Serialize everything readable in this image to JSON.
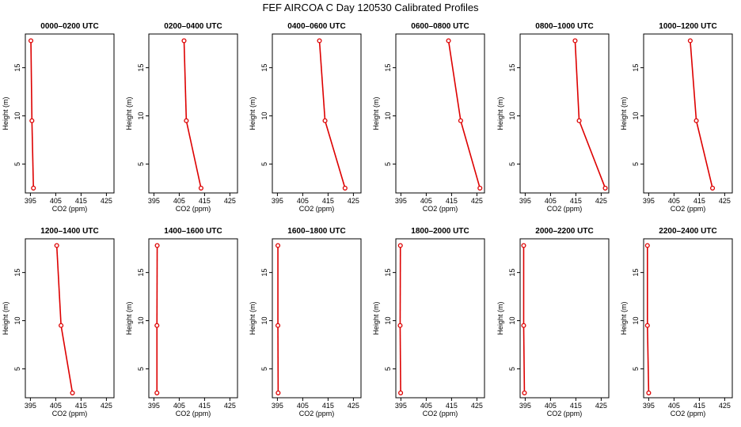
{
  "title": "FEF AIRCOA C  Day 120530  Calibrated Profiles",
  "colors": {
    "profile": "#dd0000",
    "frame": "#000000",
    "background": "#ffffff"
  },
  "chart_data": [
    {
      "type": "line",
      "title": "0000–0200 UTC",
      "xlabel": "CO2 (ppm)",
      "ylabel": "Height (m)",
      "xlim": [
        393,
        428
      ],
      "ylim": [
        2,
        18.5
      ],
      "xticks": [
        395,
        405,
        415,
        425
      ],
      "yticks": [
        5,
        10,
        15
      ],
      "grid": false,
      "points": [
        {
          "co2": 396.2,
          "height": 2.5
        },
        {
          "co2": 395.6,
          "height": 9.5
        },
        {
          "co2": 395.2,
          "height": 17.8
        }
      ]
    },
    {
      "type": "line",
      "title": "0200–0400 UTC",
      "xlabel": "CO2 (ppm)",
      "ylabel": "Height (m)",
      "xlim": [
        393,
        428
      ],
      "ylim": [
        2,
        18.5
      ],
      "xticks": [
        395,
        405,
        415,
        425
      ],
      "yticks": [
        5,
        10,
        15
      ],
      "grid": false,
      "points": [
        {
          "co2": 413.6,
          "height": 2.5
        },
        {
          "co2": 407.8,
          "height": 9.5
        },
        {
          "co2": 406.9,
          "height": 17.8
        }
      ]
    },
    {
      "type": "line",
      "title": "0400–0600 UTC",
      "xlabel": "CO2 (ppm)",
      "ylabel": "Height (m)",
      "xlim": [
        393,
        428
      ],
      "ylim": [
        2,
        18.5
      ],
      "xticks": [
        395,
        405,
        415,
        425
      ],
      "yticks": [
        5,
        10,
        15
      ],
      "grid": false,
      "points": [
        {
          "co2": 421.7,
          "height": 2.5
        },
        {
          "co2": 413.8,
          "height": 9.5
        },
        {
          "co2": 411.6,
          "height": 17.8
        }
      ]
    },
    {
      "type": "line",
      "title": "0600–0800 UTC",
      "xlabel": "CO2 (ppm)",
      "ylabel": "Height (m)",
      "xlim": [
        393,
        428
      ],
      "ylim": [
        2,
        18.5
      ],
      "xticks": [
        395,
        405,
        415,
        425
      ],
      "yticks": [
        5,
        10,
        15
      ],
      "grid": false,
      "points": [
        {
          "co2": 426.2,
          "height": 2.5
        },
        {
          "co2": 418.6,
          "height": 9.5
        },
        {
          "co2": 413.8,
          "height": 17.8
        }
      ]
    },
    {
      "type": "line",
      "title": "0800–1000 UTC",
      "xlabel": "CO2 (ppm)",
      "ylabel": "Height (m)",
      "xlim": [
        393,
        428
      ],
      "ylim": [
        2,
        18.5
      ],
      "xticks": [
        395,
        405,
        415,
        425
      ],
      "yticks": [
        5,
        10,
        15
      ],
      "grid": false,
      "points": [
        {
          "co2": 426.6,
          "height": 2.5
        },
        {
          "co2": 416.3,
          "height": 9.5
        },
        {
          "co2": 414.7,
          "height": 17.8
        }
      ]
    },
    {
      "type": "line",
      "title": "1000–1200 UTC",
      "xlabel": "CO2 (ppm)",
      "ylabel": "Height (m)",
      "xlim": [
        393,
        428
      ],
      "ylim": [
        2,
        18.5
      ],
      "xticks": [
        395,
        405,
        415,
        425
      ],
      "yticks": [
        5,
        10,
        15
      ],
      "grid": false,
      "points": [
        {
          "co2": 420.2,
          "height": 2.5
        },
        {
          "co2": 413.8,
          "height": 9.5
        },
        {
          "co2": 411.4,
          "height": 17.8
        }
      ]
    },
    {
      "type": "line",
      "title": "1200–1400 UTC",
      "xlabel": "CO2 (ppm)",
      "ylabel": "Height (m)",
      "xlim": [
        393,
        428
      ],
      "ylim": [
        2,
        18.5
      ],
      "xticks": [
        395,
        405,
        415,
        425
      ],
      "yticks": [
        5,
        10,
        15
      ],
      "grid": false,
      "points": [
        {
          "co2": 411.6,
          "height": 2.5
        },
        {
          "co2": 407.1,
          "height": 9.5
        },
        {
          "co2": 405.4,
          "height": 17.8
        }
      ]
    },
    {
      "type": "line",
      "title": "1400–1600 UTC",
      "xlabel": "CO2 (ppm)",
      "ylabel": "Height (m)",
      "xlim": [
        393,
        428
      ],
      "ylim": [
        2,
        18.5
      ],
      "xticks": [
        395,
        405,
        415,
        425
      ],
      "yticks": [
        5,
        10,
        15
      ],
      "grid": false,
      "points": [
        {
          "co2": 396.2,
          "height": 2.5
        },
        {
          "co2": 396.2,
          "height": 9.5
        },
        {
          "co2": 396.3,
          "height": 17.8
        }
      ]
    },
    {
      "type": "line",
      "title": "1600–1800 UTC",
      "xlabel": "CO2 (ppm)",
      "ylabel": "Height (m)",
      "xlim": [
        393,
        428
      ],
      "ylim": [
        2,
        18.5
      ],
      "xticks": [
        395,
        405,
        415,
        425
      ],
      "yticks": [
        5,
        10,
        15
      ],
      "grid": false,
      "points": [
        {
          "co2": 395.3,
          "height": 2.5
        },
        {
          "co2": 395.2,
          "height": 9.5
        },
        {
          "co2": 395.2,
          "height": 17.8
        }
      ]
    },
    {
      "type": "line",
      "title": "1800–2000 UTC",
      "xlabel": "CO2 (ppm)",
      "ylabel": "Height (m)",
      "xlim": [
        393,
        428
      ],
      "ylim": [
        2,
        18.5
      ],
      "xticks": [
        395,
        405,
        415,
        425
      ],
      "yticks": [
        5,
        10,
        15
      ],
      "grid": false,
      "points": [
        {
          "co2": 394.9,
          "height": 2.5
        },
        {
          "co2": 394.7,
          "height": 9.5
        },
        {
          "co2": 394.8,
          "height": 17.8
        }
      ]
    },
    {
      "type": "line",
      "title": "2000–2200 UTC",
      "xlabel": "CO2 (ppm)",
      "ylabel": "Height (m)",
      "xlim": [
        393,
        428
      ],
      "ylim": [
        2,
        18.5
      ],
      "xticks": [
        395,
        405,
        415,
        425
      ],
      "yticks": [
        5,
        10,
        15
      ],
      "grid": false,
      "points": [
        {
          "co2": 394.7,
          "height": 2.5
        },
        {
          "co2": 394.4,
          "height": 9.5
        },
        {
          "co2": 394.4,
          "height": 17.8
        }
      ]
    },
    {
      "type": "line",
      "title": "2200–2400 UTC",
      "xlabel": "CO2 (ppm)",
      "ylabel": "Height (m)",
      "xlim": [
        393,
        428
      ],
      "ylim": [
        2,
        18.5
      ],
      "xticks": [
        395,
        405,
        415,
        425
      ],
      "yticks": [
        5,
        10,
        15
      ],
      "grid": false,
      "points": [
        {
          "co2": 395.0,
          "height": 2.5
        },
        {
          "co2": 394.5,
          "height": 9.5
        },
        {
          "co2": 394.5,
          "height": 17.8
        }
      ]
    }
  ]
}
